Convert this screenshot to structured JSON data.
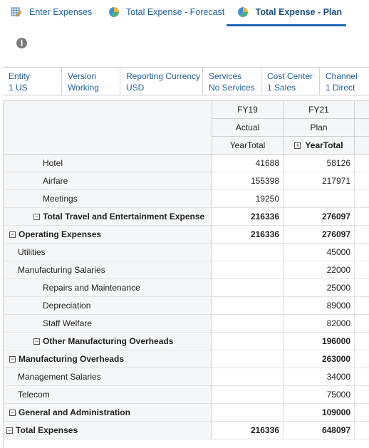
{
  "tabs": [
    {
      "label": "Enter Expenses",
      "icon": "form-edit-icon"
    },
    {
      "label": "Total Expense - Forecast",
      "icon": "pie-chart-icon"
    },
    {
      "label": "Total Expense - Plan",
      "icon": "pie-chart-icon",
      "active": true
    }
  ],
  "pov": [
    {
      "name": "Entity",
      "value": "1 US"
    },
    {
      "name": "Version",
      "value": "Working"
    },
    {
      "name": "Reporting Currency",
      "value": "USD"
    },
    {
      "name": "Services",
      "value": "No Services"
    },
    {
      "name": "Cost Center",
      "value": "1 Sales"
    },
    {
      "name": "Channel",
      "value": "1 Direct"
    }
  ],
  "columns": [
    {
      "year": "FY19",
      "scenario": "Actual",
      "period": "YearTotal"
    },
    {
      "year": "FY21",
      "scenario": "Plan",
      "period": "YearTotal"
    }
  ],
  "rows": [
    {
      "label": "Hotel",
      "indent": 3,
      "actual": "41688",
      "plan": "58126"
    },
    {
      "label": "Airfare",
      "indent": 3,
      "actual": "155398",
      "plan": "217971"
    },
    {
      "label": "Meetings",
      "indent": 3,
      "actual": "19250",
      "plan": ""
    },
    {
      "label": "Total Travel and Entertainment Expense",
      "indent": 2,
      "bold": true,
      "collapse": true,
      "actual": "216336",
      "plan": "276097"
    },
    {
      "label": "Operating Expenses",
      "indent": 1,
      "bold": true,
      "collapse": true,
      "actual": "216336",
      "plan": "276097"
    },
    {
      "label": "Utilities",
      "indent": 2,
      "actual": "",
      "plan": "45000"
    },
    {
      "label": "Manufacturing Salaries",
      "indent": 2,
      "actual": "",
      "plan": "22000"
    },
    {
      "label": "Repairs and Maintenance",
      "indent": 3,
      "actual": "",
      "plan": "25000"
    },
    {
      "label": "Depreciation",
      "indent": 3,
      "actual": "",
      "plan": "89000"
    },
    {
      "label": "Staff Welfare",
      "indent": 3,
      "actual": "",
      "plan": "82000"
    },
    {
      "label": "Other Manufacturing Overheads",
      "indent": 2,
      "bold": true,
      "collapse": true,
      "actual": "",
      "plan": "196000"
    },
    {
      "label": "Manufacturing Overheads",
      "indent": 1,
      "bold": true,
      "collapse": true,
      "actual": "",
      "plan": "263000"
    },
    {
      "label": "Management Salaries",
      "indent": 2,
      "actual": "",
      "plan": "34000"
    },
    {
      "label": "Telecom",
      "indent": 2,
      "actual": "",
      "plan": "75000"
    },
    {
      "label": "General and Administration",
      "indent": 1,
      "bold": true,
      "collapse": true,
      "actual": "",
      "plan": "109000"
    },
    {
      "label": "Total Expenses",
      "indent": 0,
      "bold": true,
      "collapse": true,
      "actual": "216336",
      "plan": "648097"
    }
  ],
  "colors": {
    "accent": "#1f67b1",
    "link": "#1f5f9e",
    "header_bg": "#f5f6f7"
  }
}
